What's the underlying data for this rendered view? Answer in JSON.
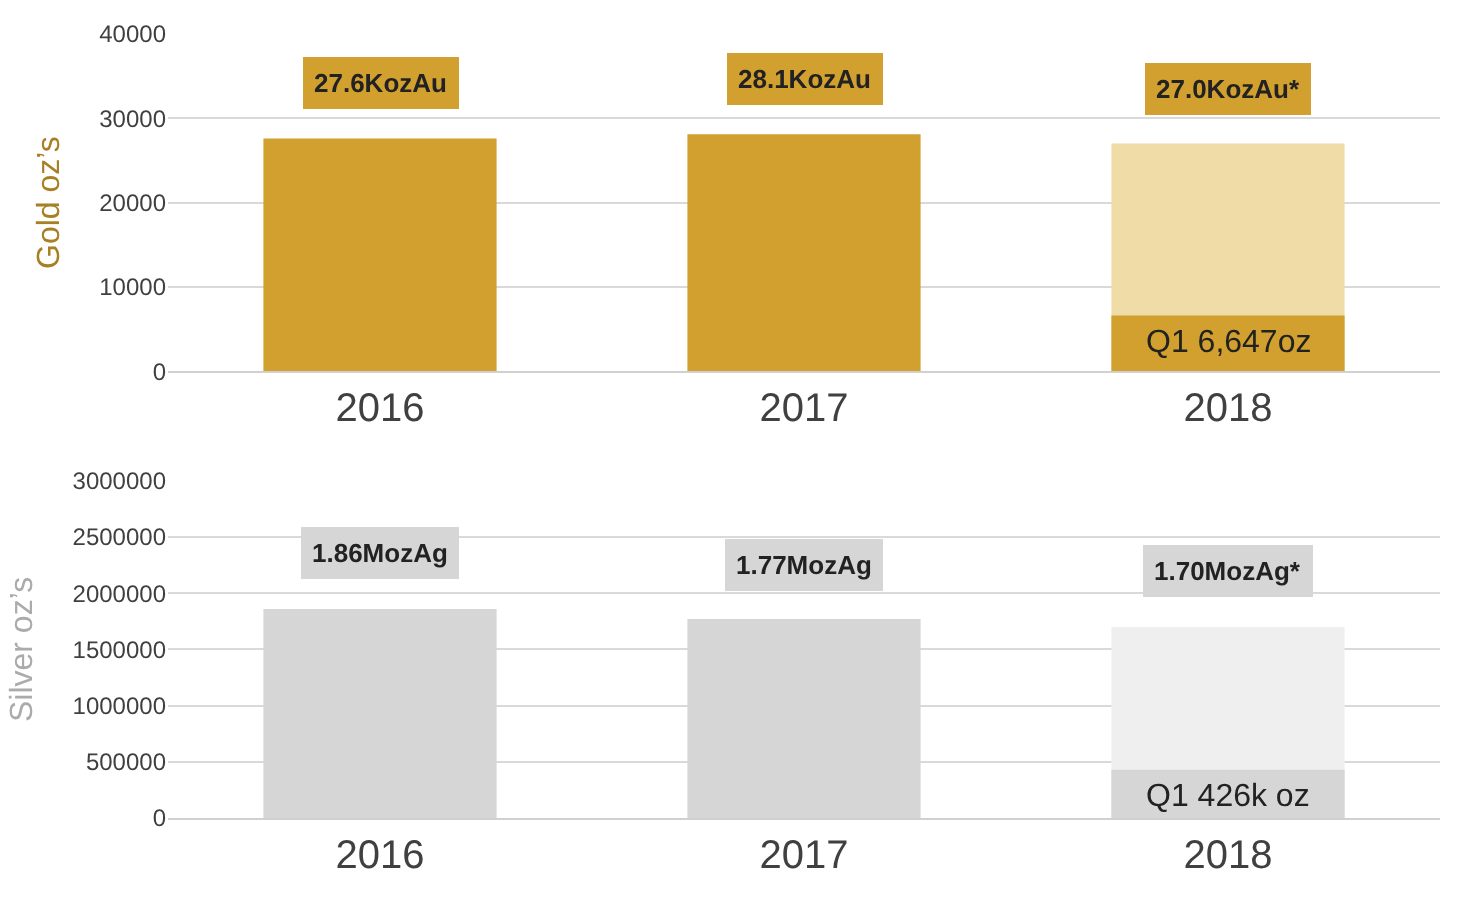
{
  "chart_data": [
    {
      "type": "bar",
      "ylabel": "Gold oz’s",
      "categories": [
        "2016",
        "2017",
        "2018"
      ],
      "series": [
        {
          "colors": [
            "#d1a02e",
            "#d1a02e",
            "#f0dca6"
          ],
          "values": [
            27600,
            28100,
            27000
          ]
        },
        {
          "color": "#d1a02e",
          "values": [
            null,
            null,
            6600
          ]
        }
      ],
      "annotations": [
        {
          "text": "27.6KozAu",
          "x": "2016",
          "y": 27600
        },
        {
          "text": "28.1KozAu",
          "x": "2017",
          "y": 28100
        },
        {
          "text": "27.0KozAu*",
          "x": "2018",
          "y": 27000
        },
        {
          "text": "Q1 6,647oz",
          "x": "2018",
          "y": 6600
        }
      ],
      "ylim": [
        0,
        40000
      ],
      "yticks": [
        0,
        10000,
        20000,
        30000,
        40000
      ],
      "grid": "y"
    },
    {
      "type": "bar",
      "ylabel": "Silver oz’s",
      "categories": [
        "2016",
        "2017",
        "2018"
      ],
      "series": [
        {
          "colors": [
            "#d6d6d6",
            "#d6d6d6",
            "#efefef"
          ],
          "values": [
            1860000,
            1770000,
            1700000
          ]
        },
        {
          "color": "#d6d6d6",
          "values": [
            null,
            null,
            430000
          ]
        }
      ],
      "annotations": [
        {
          "text": "1.86MozAg",
          "x": "2016",
          "y": 1860000
        },
        {
          "text": "1.77MozAg",
          "x": "2017",
          "y": 1770000
        },
        {
          "text": "1.70MozAg*",
          "x": "2018",
          "y": 1700000
        },
        {
          "text": "Q1 426k oz",
          "x": "2018",
          "y": 430000
        }
      ],
      "ylim": [
        0,
        3000000
      ],
      "yticks": [
        0,
        500000,
        1000000,
        1500000,
        2000000,
        2500000,
        3000000
      ],
      "grid": "y"
    }
  ]
}
